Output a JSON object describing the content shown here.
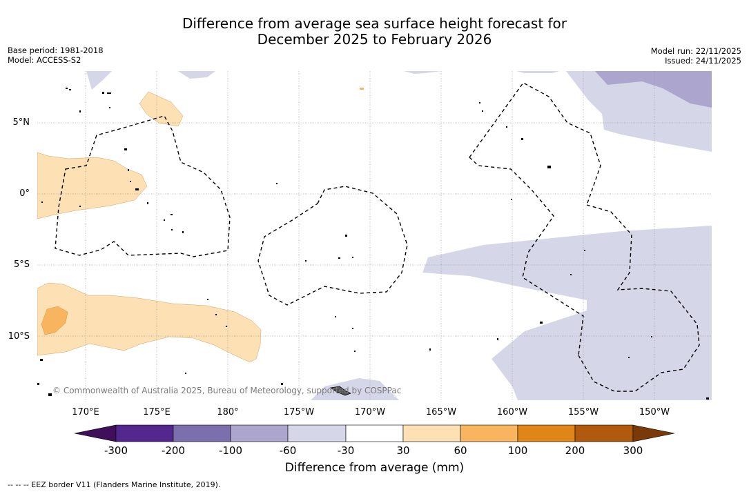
{
  "title": {
    "line1": "Difference from average sea surface height forecast for",
    "line2": "December 2025 to February 2026"
  },
  "meta": {
    "base_period": "Base period: 1981-2018",
    "model": "Model: ACCESS-S2",
    "model_run": "Model run: 22/11/2025",
    "issued": "Issued: 24/11/2025"
  },
  "latitudes": [
    "5°N",
    "0°",
    "5°S",
    "10°S"
  ],
  "longitudes": [
    "170°E",
    "175°E",
    "180°",
    "175°W",
    "170°W",
    "165°W",
    "160°W",
    "155°W",
    "150°W"
  ],
  "credit": "© Commonwealth of Australia 2025, Bureau of Meteorology, supported by COSPPac",
  "colorbar": {
    "title": "Difference from average (mm)",
    "labels": [
      "-300",
      "-200",
      "-100",
      "-60",
      "-30",
      "30",
      "60",
      "100",
      "200",
      "300"
    ],
    "colors": [
      "#3f0f5c",
      "#54278f",
      "#7b6fad",
      "#aca6cf",
      "#d6d6e9",
      "#ffffff",
      "#fde0b3",
      "#f9b45f",
      "#e08518",
      "#b05a0e",
      "#7a3a08"
    ]
  },
  "legend": {
    "eez": "--  --  -- EEZ border V11 (Flanders Marine Institute, 2019)."
  }
}
